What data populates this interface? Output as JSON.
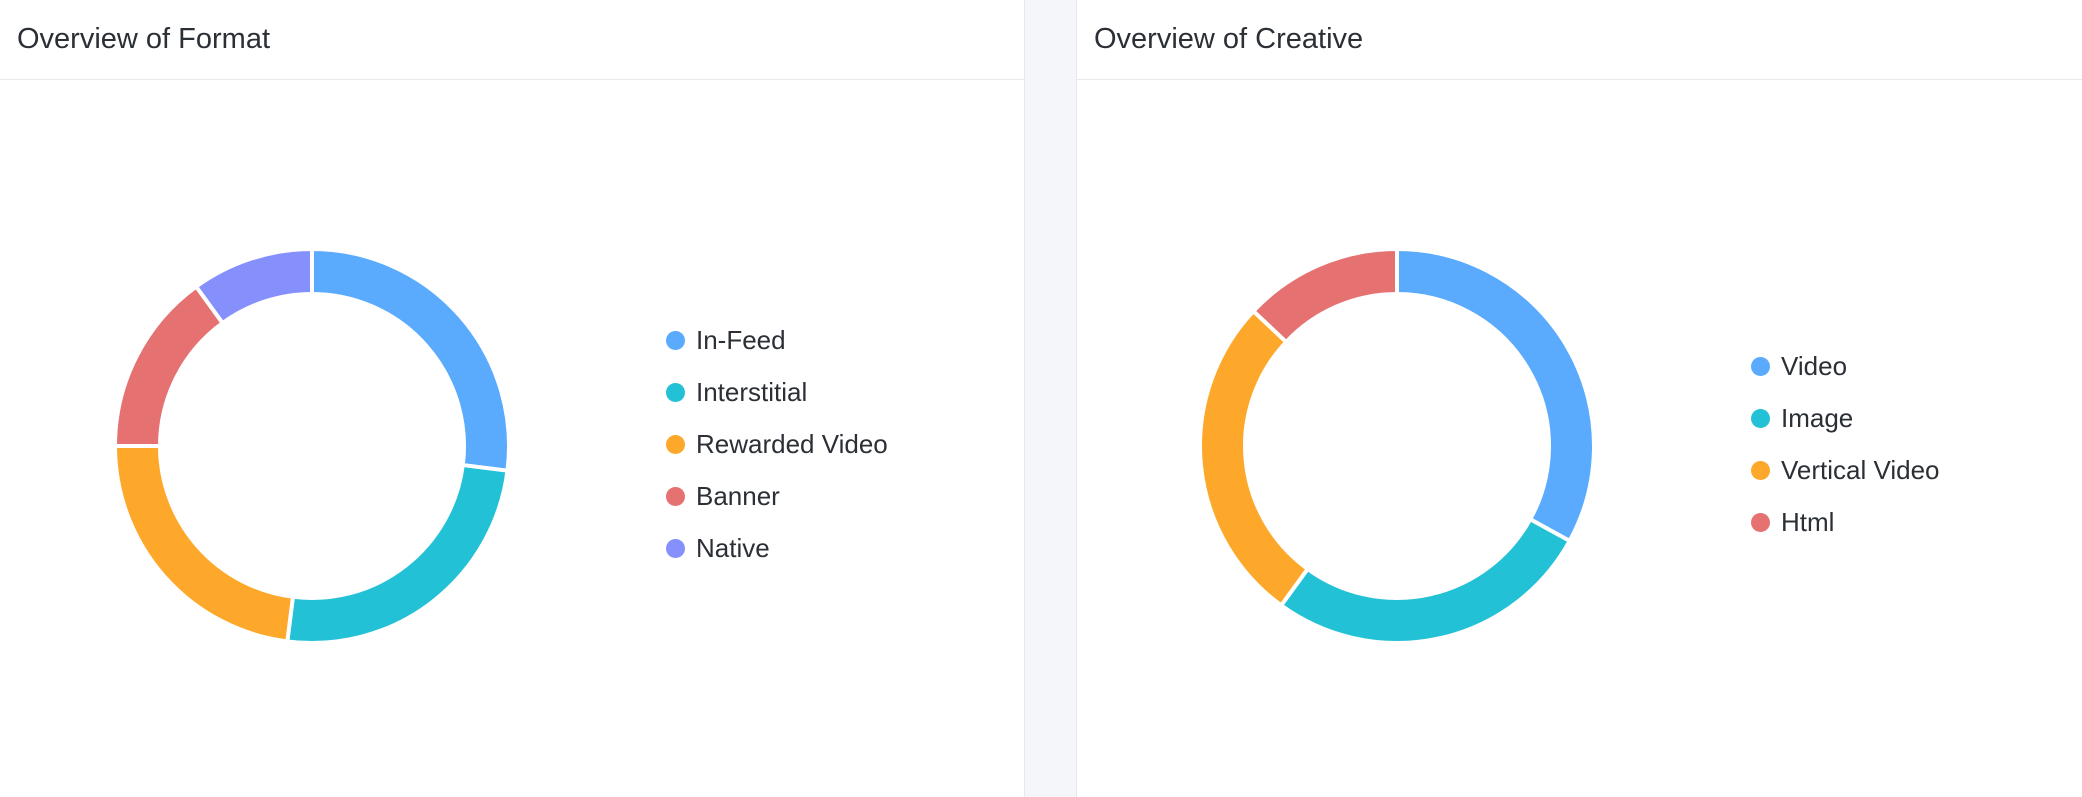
{
  "chart_data": [
    {
      "type": "pie",
      "title": "Overview of Format",
      "categories": [
        "In-Feed",
        "Interstitial",
        "Rewarded Video",
        "Banner",
        "Native"
      ],
      "values": [
        27,
        25,
        23,
        15,
        10
      ],
      "colors": [
        "#5aabfd",
        "#23c1d6",
        "#fea82b",
        "#e57171",
        "#8590fc"
      ],
      "legend": "right"
    },
    {
      "type": "pie",
      "title": "Overview of Creative",
      "categories": [
        "Video",
        "Image",
        "Vertical Video",
        "Html"
      ],
      "values": [
        33,
        27,
        27,
        13
      ],
      "colors": [
        "#5aabfd",
        "#23c1d6",
        "#fea82b",
        "#e57171"
      ],
      "legend": "right"
    }
  ]
}
